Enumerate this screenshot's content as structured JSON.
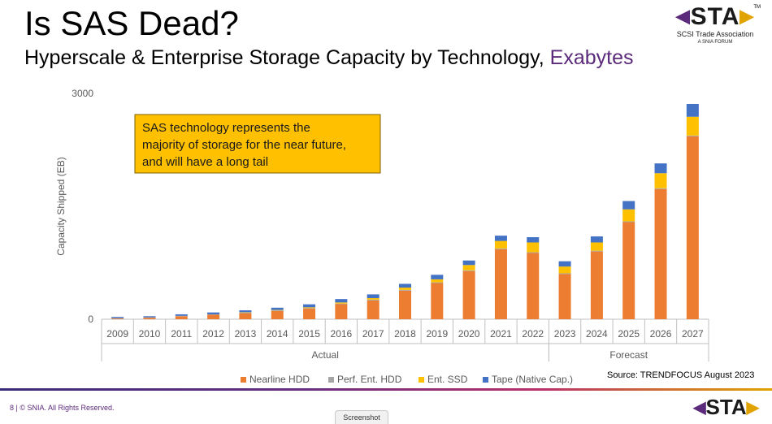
{
  "slide": {
    "title": "Is SAS Dead?",
    "subtitle_main": "Hyperscale & Enterprise Storage Capacity by Technology,",
    "subtitle_highlight": "Exabytes",
    "footer": "8 | © SNIA. All Rights Reserved.",
    "tab_label": "Screenshot",
    "source": "Source: TRENDFOCUS August 2023"
  },
  "logo": {
    "mark": "STA",
    "tm": "TM",
    "line1": "SCSI Trade Association",
    "line2": "A SNIA FORUM"
  },
  "colors": {
    "nearline": "#ed7d31",
    "perf": "#a5a5a5",
    "ssd": "#ffc000",
    "tape": "#4472c4",
    "accent_purple": "#5b2a7a",
    "callout_bg": "#ffc000"
  },
  "chart_data": {
    "type": "bar",
    "stacked": true,
    "ylabel": "Capacity Shipped (EB)",
    "ylim": [
      0,
      3000
    ],
    "yticks": [
      0,
      3000
    ],
    "categories": [
      "2009",
      "2010",
      "2011",
      "2012",
      "2013",
      "2014",
      "2015",
      "2016",
      "2017",
      "2018",
      "2019",
      "2020",
      "2021",
      "2022",
      "2023",
      "2024",
      "2025",
      "2026",
      "2027"
    ],
    "groups": [
      {
        "label": "Actual",
        "from": "2009",
        "to": "2022"
      },
      {
        "label": "Forecast",
        "from": "2023",
        "to": "2027"
      }
    ],
    "series": [
      {
        "name": "Nearline HDD",
        "color_key": "nearline",
        "values": [
          10,
          20,
          40,
          60,
          80,
          110,
          140,
          200,
          250,
          380,
          480,
          640,
          930,
          880,
          600,
          900,
          1290,
          1730,
          2430
        ]
      },
      {
        "name": "Perf. Ent. HDD",
        "color_key": "perf",
        "values": [
          5,
          5,
          5,
          5,
          8,
          8,
          8,
          8,
          10,
          10,
          10,
          10,
          10,
          10,
          10,
          10,
          10,
          10,
          10
        ]
      },
      {
        "name": "Ent. SSD",
        "color_key": "ssd",
        "values": [
          0,
          0,
          0,
          0,
          5,
          5,
          10,
          15,
          20,
          30,
          40,
          70,
          100,
          130,
          90,
          110,
          160,
          200,
          250
        ]
      },
      {
        "name": "Tape (Native Cap.)",
        "color_key": "tape",
        "values": [
          15,
          15,
          20,
          25,
          25,
          30,
          40,
          45,
          50,
          50,
          60,
          60,
          70,
          70,
          70,
          80,
          110,
          130,
          170
        ]
      }
    ],
    "annotation": "SAS technology represents the majority of storage for the near future, and will have a long tail",
    "legend_position": "bottom",
    "grid": false
  }
}
